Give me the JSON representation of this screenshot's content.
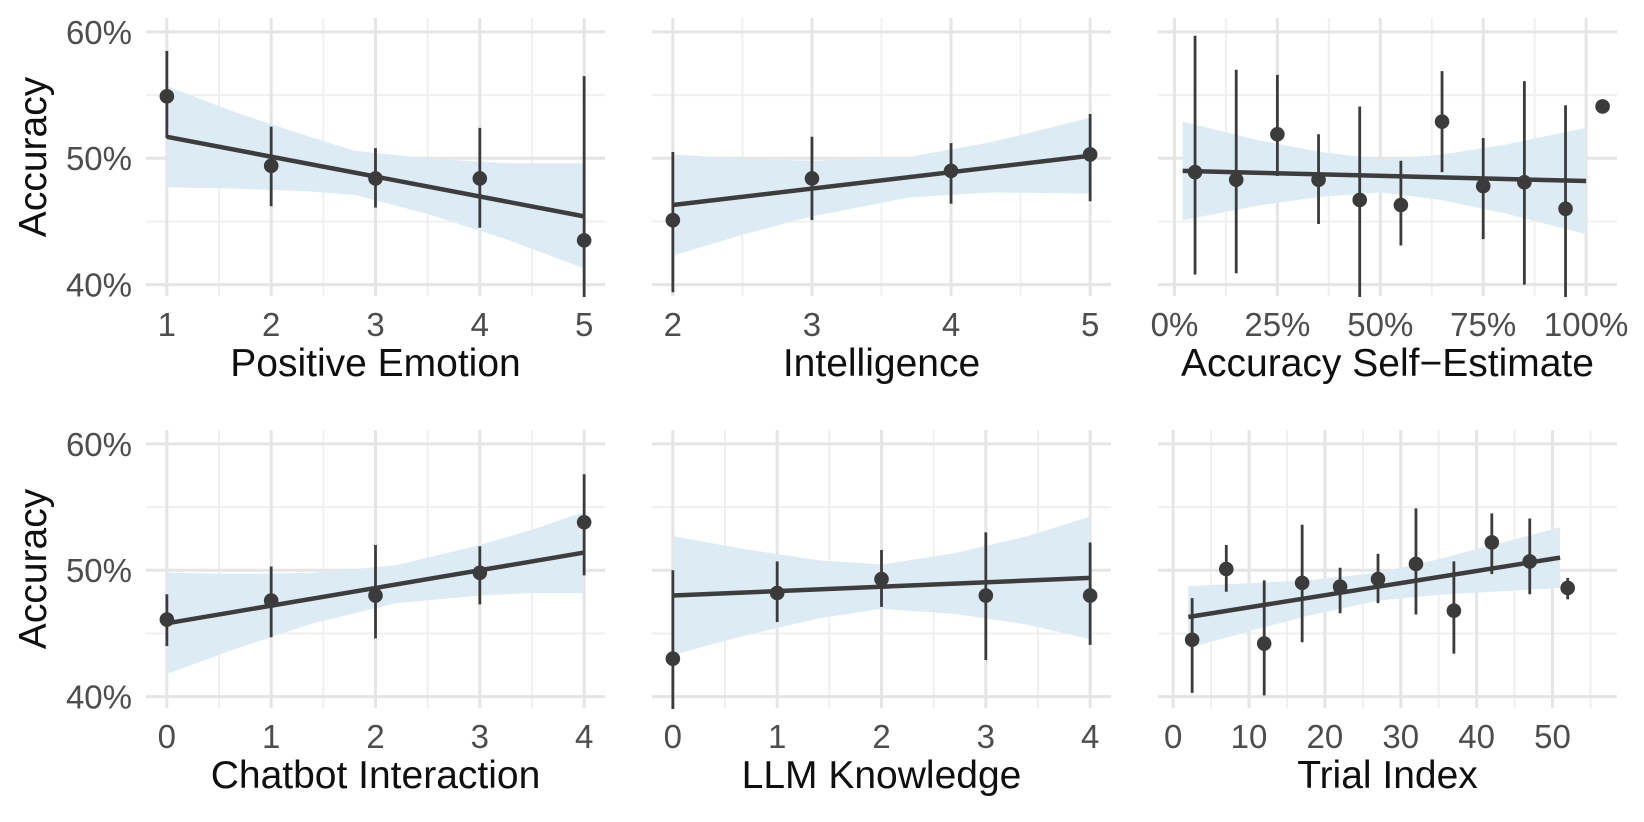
{
  "figure": {
    "kind": "faceted scatter with linear fit and confidence ribbon",
    "background": "#ffffff"
  },
  "colors": {
    "point": "#3b3b3b",
    "errorbar": "#3b3b3b",
    "trend": "#3d3d3d",
    "band": "#dcebf4",
    "grid_major": "#e5e5e5",
    "grid_minor": "#f0f0f0",
    "axis_text": "#4d4d4d",
    "axis_title": "#0f0f0f"
  },
  "y_axis": {
    "label": "Accuracy",
    "ylim": [
      39.1,
      61.1
    ],
    "ticks": [
      {
        "v": 40,
        "label": "40%"
      },
      {
        "v": 50,
        "label": "50%"
      },
      {
        "v": 60,
        "label": "60%"
      }
    ],
    "minor": [
      45,
      55
    ]
  },
  "chart_data": [
    {
      "type": "scatter",
      "xlabel": "Positive Emotion",
      "ylabel": "Accuracy",
      "xlim": [
        0.8,
        5.2
      ],
      "x_ticks": [
        {
          "v": 1,
          "label": "1"
        },
        {
          "v": 2,
          "label": "2"
        },
        {
          "v": 3,
          "label": "3"
        },
        {
          "v": 4,
          "label": "4"
        },
        {
          "v": 5,
          "label": "5"
        }
      ],
      "x_minor": [
        1.5,
        2.5,
        3.5,
        4.5
      ],
      "points": [
        {
          "x": 1,
          "y": 54.9,
          "lo": 51.6,
          "hi": 58.5
        },
        {
          "x": 2,
          "y": 49.4,
          "lo": 46.2,
          "hi": 52.5
        },
        {
          "x": 3,
          "y": 48.4,
          "lo": 46.1,
          "hi": 50.8
        },
        {
          "x": 4,
          "y": 48.4,
          "lo": 44.5,
          "hi": 52.4
        },
        {
          "x": 5,
          "y": 43.5,
          "lo": 38.9,
          "hi": 56.5
        }
      ],
      "trend": {
        "x1": 1,
        "y1": 51.7,
        "x2": 5,
        "y2": 45.4
      },
      "band": [
        {
          "x": 1,
          "lo": 47.7,
          "hi": 55.7
        },
        {
          "x": 1.67,
          "lo": 47.6,
          "hi": 53.6
        },
        {
          "x": 2.33,
          "lo": 47.4,
          "hi": 51.8
        },
        {
          "x": 2.8,
          "lo": 47.1,
          "hi": 50.6
        },
        {
          "x": 3.5,
          "lo": 45.6,
          "hi": 50.0
        },
        {
          "x": 4.25,
          "lo": 43.6,
          "hi": 49.6
        },
        {
          "x": 5,
          "lo": 41.3,
          "hi": 49.6
        }
      ]
    },
    {
      "type": "scatter",
      "xlabel": "Intelligence",
      "ylabel": "Accuracy",
      "xlim": [
        1.85,
        5.15
      ],
      "x_ticks": [
        {
          "v": 2,
          "label": "2"
        },
        {
          "v": 3,
          "label": "3"
        },
        {
          "v": 4,
          "label": "4"
        },
        {
          "v": 5,
          "label": "5"
        }
      ],
      "x_minor": [
        2.5,
        3.5,
        4.5
      ],
      "points": [
        {
          "x": 2,
          "y": 45.1,
          "lo": 39.4,
          "hi": 50.5
        },
        {
          "x": 3,
          "y": 48.4,
          "lo": 45.1,
          "hi": 51.7
        },
        {
          "x": 4,
          "y": 49.0,
          "lo": 46.4,
          "hi": 51.2
        },
        {
          "x": 5,
          "y": 50.3,
          "lo": 46.6,
          "hi": 53.5
        }
      ],
      "trend": {
        "x1": 2,
        "y1": 46.3,
        "x2": 5,
        "y2": 50.2
      },
      "band": [
        {
          "x": 2,
          "lo": 42.3,
          "hi": 50.3
        },
        {
          "x": 2.5,
          "lo": 43.95,
          "hi": 49.95
        },
        {
          "x": 3,
          "lo": 45.4,
          "hi": 49.8
        },
        {
          "x": 3.7,
          "lo": 46.9,
          "hi": 50.1
        },
        {
          "x": 4.3,
          "lo": 47.3,
          "hi": 51.3
        },
        {
          "x": 5,
          "lo": 47.2,
          "hi": 53.2
        }
      ]
    },
    {
      "type": "scatter",
      "xlabel": "Accuracy Self−Estimate",
      "ylabel": "Accuracy",
      "xlim": [
        -4,
        107.5
      ],
      "x_ticks": [
        {
          "v": 0,
          "label": "0%"
        },
        {
          "v": 25,
          "label": "25%"
        },
        {
          "v": 50,
          "label": "50%"
        },
        {
          "v": 75,
          "label": "75%"
        },
        {
          "v": 100,
          "label": "100%"
        }
      ],
      "x_minor": [
        12.5,
        37.5,
        62.5,
        87.5
      ],
      "points": [
        {
          "x": 5,
          "y": 48.9,
          "lo": 40.8,
          "hi": 59.7
        },
        {
          "x": 15,
          "y": 48.3,
          "lo": 40.9,
          "hi": 57.0
        },
        {
          "x": 25,
          "y": 51.9,
          "lo": 48.6,
          "hi": 56.6
        },
        {
          "x": 35,
          "y": 48.3,
          "lo": 44.8,
          "hi": 51.9
        },
        {
          "x": 45,
          "y": 46.7,
          "lo": 38.9,
          "hi": 54.1
        },
        {
          "x": 55,
          "y": 46.3,
          "lo": 43.1,
          "hi": 49.8
        },
        {
          "x": 65,
          "y": 52.9,
          "lo": 48.9,
          "hi": 56.9
        },
        {
          "x": 75,
          "y": 47.8,
          "lo": 43.6,
          "hi": 51.6
        },
        {
          "x": 85,
          "y": 48.1,
          "lo": 40.0,
          "hi": 56.1
        },
        {
          "x": 95,
          "y": 46.0,
          "lo": 38.9,
          "hi": 54.2
        },
        {
          "x": 104,
          "y": 54.1,
          "lo": null,
          "hi": null
        }
      ],
      "trend": {
        "x1": 2,
        "y1": 49.0,
        "x2": 100,
        "y2": 48.2
      },
      "band": [
        {
          "x": 2,
          "lo": 45.1,
          "hi": 52.9
        },
        {
          "x": 20,
          "lo": 46.25,
          "hi": 51.45
        },
        {
          "x": 35,
          "lo": 46.93,
          "hi": 50.53
        },
        {
          "x": 50,
          "lo": 47.31,
          "hi": 49.91
        },
        {
          "x": 65,
          "lo": 46.69,
          "hi": 50.29
        },
        {
          "x": 80,
          "lo": 45.66,
          "hi": 51.06
        },
        {
          "x": 100,
          "lo": 44.0,
          "hi": 52.4
        }
      ]
    },
    {
      "type": "scatter",
      "xlabel": "Chatbot Interaction",
      "ylabel": "Accuracy",
      "xlim": [
        -0.2,
        4.2
      ],
      "x_ticks": [
        {
          "v": 0,
          "label": "0"
        },
        {
          "v": 1,
          "label": "1"
        },
        {
          "v": 2,
          "label": "2"
        },
        {
          "v": 3,
          "label": "3"
        },
        {
          "v": 4,
          "label": "4"
        }
      ],
      "x_minor": [
        0.5,
        1.5,
        2.5,
        3.5
      ],
      "points": [
        {
          "x": 0,
          "y": 46.1,
          "lo": 44.0,
          "hi": 48.1
        },
        {
          "x": 1,
          "y": 47.6,
          "lo": 44.7,
          "hi": 50.3
        },
        {
          "x": 2,
          "y": 48.0,
          "lo": 44.6,
          "hi": 52.0
        },
        {
          "x": 3,
          "y": 49.8,
          "lo": 47.3,
          "hi": 51.9
        },
        {
          "x": 4,
          "y": 53.8,
          "lo": 49.6,
          "hi": 57.6
        }
      ],
      "trend": {
        "x1": 0,
        "y1": 45.8,
        "x2": 4,
        "y2": 51.4
      },
      "band": [
        {
          "x": 0,
          "lo": 41.8,
          "hi": 49.8
        },
        {
          "x": 0.7,
          "lo": 43.9,
          "hi": 49.7
        },
        {
          "x": 1.4,
          "lo": 45.8,
          "hi": 49.8
        },
        {
          "x": 2.2,
          "lo": 47.4,
          "hi": 50.4
        },
        {
          "x": 3,
          "lo": 48.0,
          "hi": 52.0
        },
        {
          "x": 3.5,
          "lo": 48.2,
          "hi": 53.2
        },
        {
          "x": 4,
          "lo": 48.2,
          "hi": 54.6
        }
      ]
    },
    {
      "type": "scatter",
      "xlabel": "LLM Knowledge",
      "ylabel": "Accuracy",
      "xlim": [
        -0.2,
        4.2
      ],
      "x_ticks": [
        {
          "v": 0,
          "label": "0"
        },
        {
          "v": 1,
          "label": "1"
        },
        {
          "v": 2,
          "label": "2"
        },
        {
          "v": 3,
          "label": "3"
        },
        {
          "v": 4,
          "label": "4"
        }
      ],
      "x_minor": [
        0.5,
        1.5,
        2.5,
        3.5
      ],
      "points": [
        {
          "x": 0,
          "y": 43.0,
          "lo": 38.9,
          "hi": 50.0
        },
        {
          "x": 1,
          "y": 48.2,
          "lo": 45.9,
          "hi": 50.7
        },
        {
          "x": 2,
          "y": 49.3,
          "lo": 47.1,
          "hi": 51.6
        },
        {
          "x": 3,
          "y": 48.0,
          "lo": 42.9,
          "hi": 53.0
        },
        {
          "x": 4,
          "y": 48.0,
          "lo": 44.1,
          "hi": 52.2
        }
      ],
      "trend": {
        "x1": 0,
        "y1": 48.0,
        "x2": 4,
        "y2": 49.4
      },
      "band": [
        {
          "x": 0,
          "lo": 43.3,
          "hi": 52.7
        },
        {
          "x": 0.7,
          "lo": 44.85,
          "hi": 51.65
        },
        {
          "x": 1.4,
          "lo": 46.2,
          "hi": 50.8
        },
        {
          "x": 2,
          "lo": 46.95,
          "hi": 50.45
        },
        {
          "x": 2.7,
          "lo": 46.55,
          "hi": 51.35
        },
        {
          "x": 3.4,
          "lo": 45.7,
          "hi": 52.7
        },
        {
          "x": 4,
          "lo": 44.55,
          "hi": 54.25
        }
      ]
    },
    {
      "type": "scatter",
      "xlabel": "Trial Index",
      "ylabel": "Accuracy",
      "xlim": [
        -2,
        58.5
      ],
      "x_ticks": [
        {
          "v": 0,
          "label": "0"
        },
        {
          "v": 10,
          "label": "10"
        },
        {
          "v": 20,
          "label": "20"
        },
        {
          "v": 30,
          "label": "30"
        },
        {
          "v": 40,
          "label": "40"
        },
        {
          "v": 50,
          "label": "50"
        }
      ],
      "x_minor": [
        5,
        15,
        25,
        35,
        45,
        55
      ],
      "points": [
        {
          "x": 2.5,
          "y": 44.5,
          "lo": 40.3,
          "hi": 47.8
        },
        {
          "x": 7,
          "y": 50.1,
          "lo": 48.3,
          "hi": 52.0
        },
        {
          "x": 12,
          "y": 44.2,
          "lo": 40.1,
          "hi": 49.2
        },
        {
          "x": 17,
          "y": 49.0,
          "lo": 44.3,
          "hi": 53.6
        },
        {
          "x": 22,
          "y": 48.7,
          "lo": 46.6,
          "hi": 50.2
        },
        {
          "x": 27,
          "y": 49.3,
          "lo": 47.4,
          "hi": 51.3
        },
        {
          "x": 32,
          "y": 50.5,
          "lo": 46.5,
          "hi": 54.9
        },
        {
          "x": 37,
          "y": 46.8,
          "lo": 43.4,
          "hi": 50.7
        },
        {
          "x": 42,
          "y": 52.2,
          "lo": 49.7,
          "hi": 54.5
        },
        {
          "x": 47,
          "y": 50.7,
          "lo": 48.1,
          "hi": 54.1
        },
        {
          "x": 52,
          "y": 48.6,
          "lo": 47.7,
          "hi": 49.4
        }
      ],
      "trend": {
        "x1": 2,
        "y1": 46.3,
        "x2": 51,
        "y2": 51.0
      },
      "band": [
        {
          "x": 2,
          "lo": 43.85,
          "hi": 48.75
        },
        {
          "x": 10,
          "lo": 45.17,
          "hi": 48.97
        },
        {
          "x": 18,
          "lo": 46.43,
          "hi": 49.23
        },
        {
          "x": 27,
          "lo": 47.6,
          "hi": 49.8
        },
        {
          "x": 35,
          "lo": 48.07,
          "hi": 50.87
        },
        {
          "x": 43,
          "lo": 48.33,
          "hi": 52.13
        },
        {
          "x": 51,
          "lo": 48.6,
          "hi": 53.4
        }
      ]
    }
  ]
}
